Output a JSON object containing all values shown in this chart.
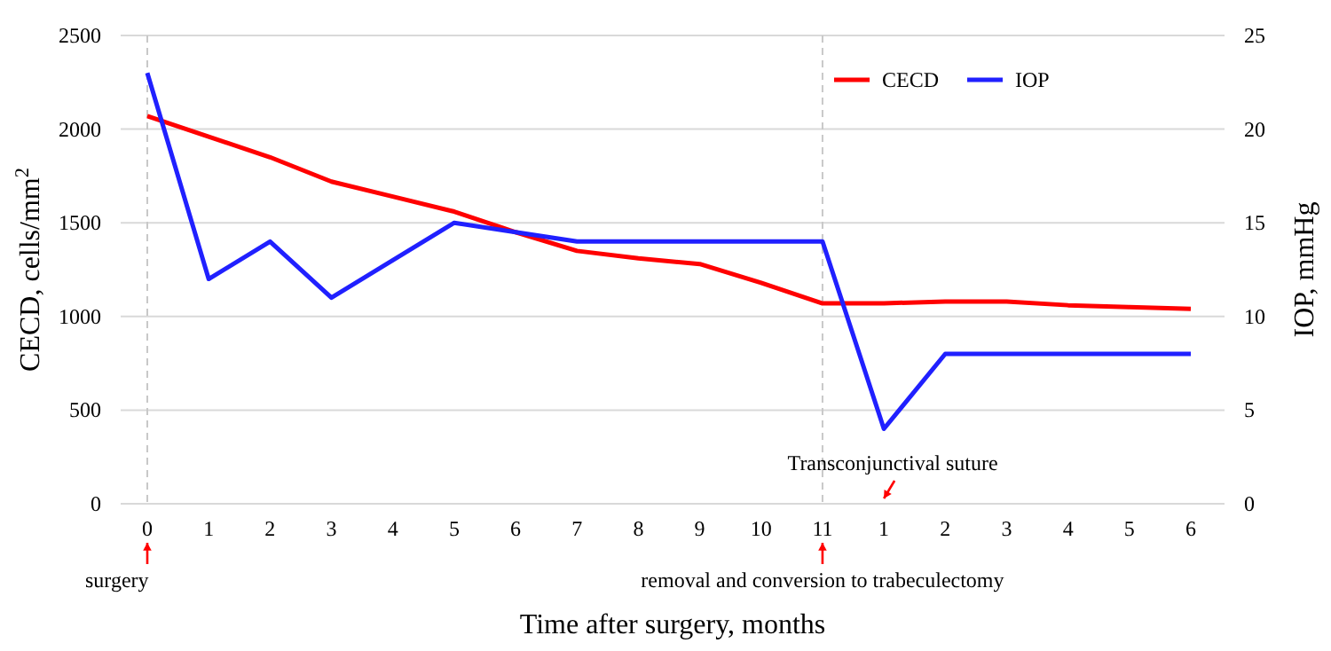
{
  "chart_data": {
    "type": "line",
    "xlabel": "Time after surgery, months",
    "ylabel": "CECD, cells/mm$^{2}$",
    "y2label": "IOP, mmHg",
    "categories": [
      "0",
      "1",
      "2",
      "3",
      "4",
      "5",
      "6",
      "7",
      "8",
      "9",
      "10",
      "11",
      "1",
      "2",
      "3",
      "4",
      "5",
      "6"
    ],
    "series": [
      {
        "name": "CECD",
        "color": "#ff0000",
        "values": [
          2070,
          1960,
          1850,
          1720,
          1640,
          1560,
          1450,
          1350,
          1310,
          1280,
          1180,
          1070,
          1070,
          1080,
          1080,
          1060,
          1050,
          1040
        ]
      },
      {
        "name": "IOP",
        "color": "#2020ff",
        "axis": "y2",
        "values": [
          23,
          12,
          14,
          11,
          13,
          15,
          14.5,
          14,
          14,
          14,
          14,
          14,
          4,
          8,
          8,
          8,
          8,
          8
        ]
      }
    ],
    "ylim": [
      0,
      2500
    ],
    "yticks": [
      0,
      500,
      1000,
      1500,
      2000,
      2500
    ],
    "y2lim": [
      0,
      25
    ],
    "y2ticks": [
      0,
      5,
      10,
      15,
      20,
      25
    ],
    "grid": "y",
    "legend": "top right",
    "line_style": "solid",
    "marker": "none",
    "ref_lines": [
      {
        "axis": "x",
        "value": "0",
        "color": "#c8c8c8",
        "line_style": "dashed"
      },
      {
        "axis": "x",
        "value": "11",
        "color": "#c8c8c8",
        "line_style": "dashed"
      }
    ],
    "annotations": [
      "surgery",
      "removal and conversion to trabeculectomy",
      "Transconjunctival suture"
    ]
  }
}
